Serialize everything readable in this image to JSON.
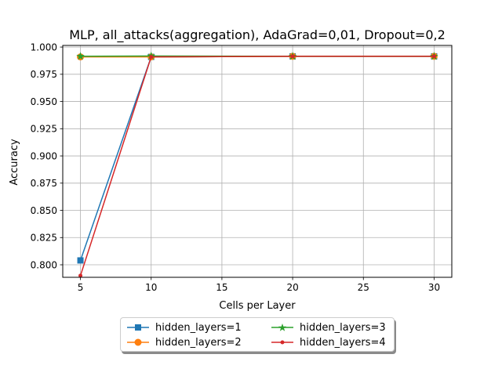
{
  "chart_data": {
    "type": "line",
    "title": "MLP, all_attacks(aggregation), AdaGrad=0,01, Dropout=0,2",
    "xlabel": "Cells per Layer",
    "ylabel": "Accuracy",
    "x": [
      5,
      10,
      20,
      30
    ],
    "xlim": [
      3.75,
      31.25
    ],
    "ylim": [
      0.7885,
      1.0015
    ],
    "xticks": [
      "5",
      "10",
      "15",
      "20",
      "25",
      "30"
    ],
    "yticks": [
      "0.800",
      "0.825",
      "0.850",
      "0.875",
      "0.900",
      "0.925",
      "0.950",
      "0.975",
      "1.000"
    ],
    "grid": true,
    "legend_position": "below",
    "series": [
      {
        "name": "hidden_layers=1",
        "values": [
          0.804,
          0.991,
          0.9915,
          0.9915
        ],
        "color": "#1f77b4",
        "marker": "square"
      },
      {
        "name": "hidden_layers=2",
        "values": [
          0.991,
          0.991,
          0.9915,
          0.9915
        ],
        "color": "#ff7f0e",
        "marker": "circle"
      },
      {
        "name": "hidden_layers=3",
        "values": [
          0.9915,
          0.9918,
          0.9915,
          0.9915
        ],
        "color": "#2ca02c",
        "marker": "star"
      },
      {
        "name": "hidden_layers=4",
        "values": [
          0.79,
          0.991,
          0.9915,
          0.9915
        ],
        "color": "#d62728",
        "marker": "dot"
      }
    ]
  }
}
